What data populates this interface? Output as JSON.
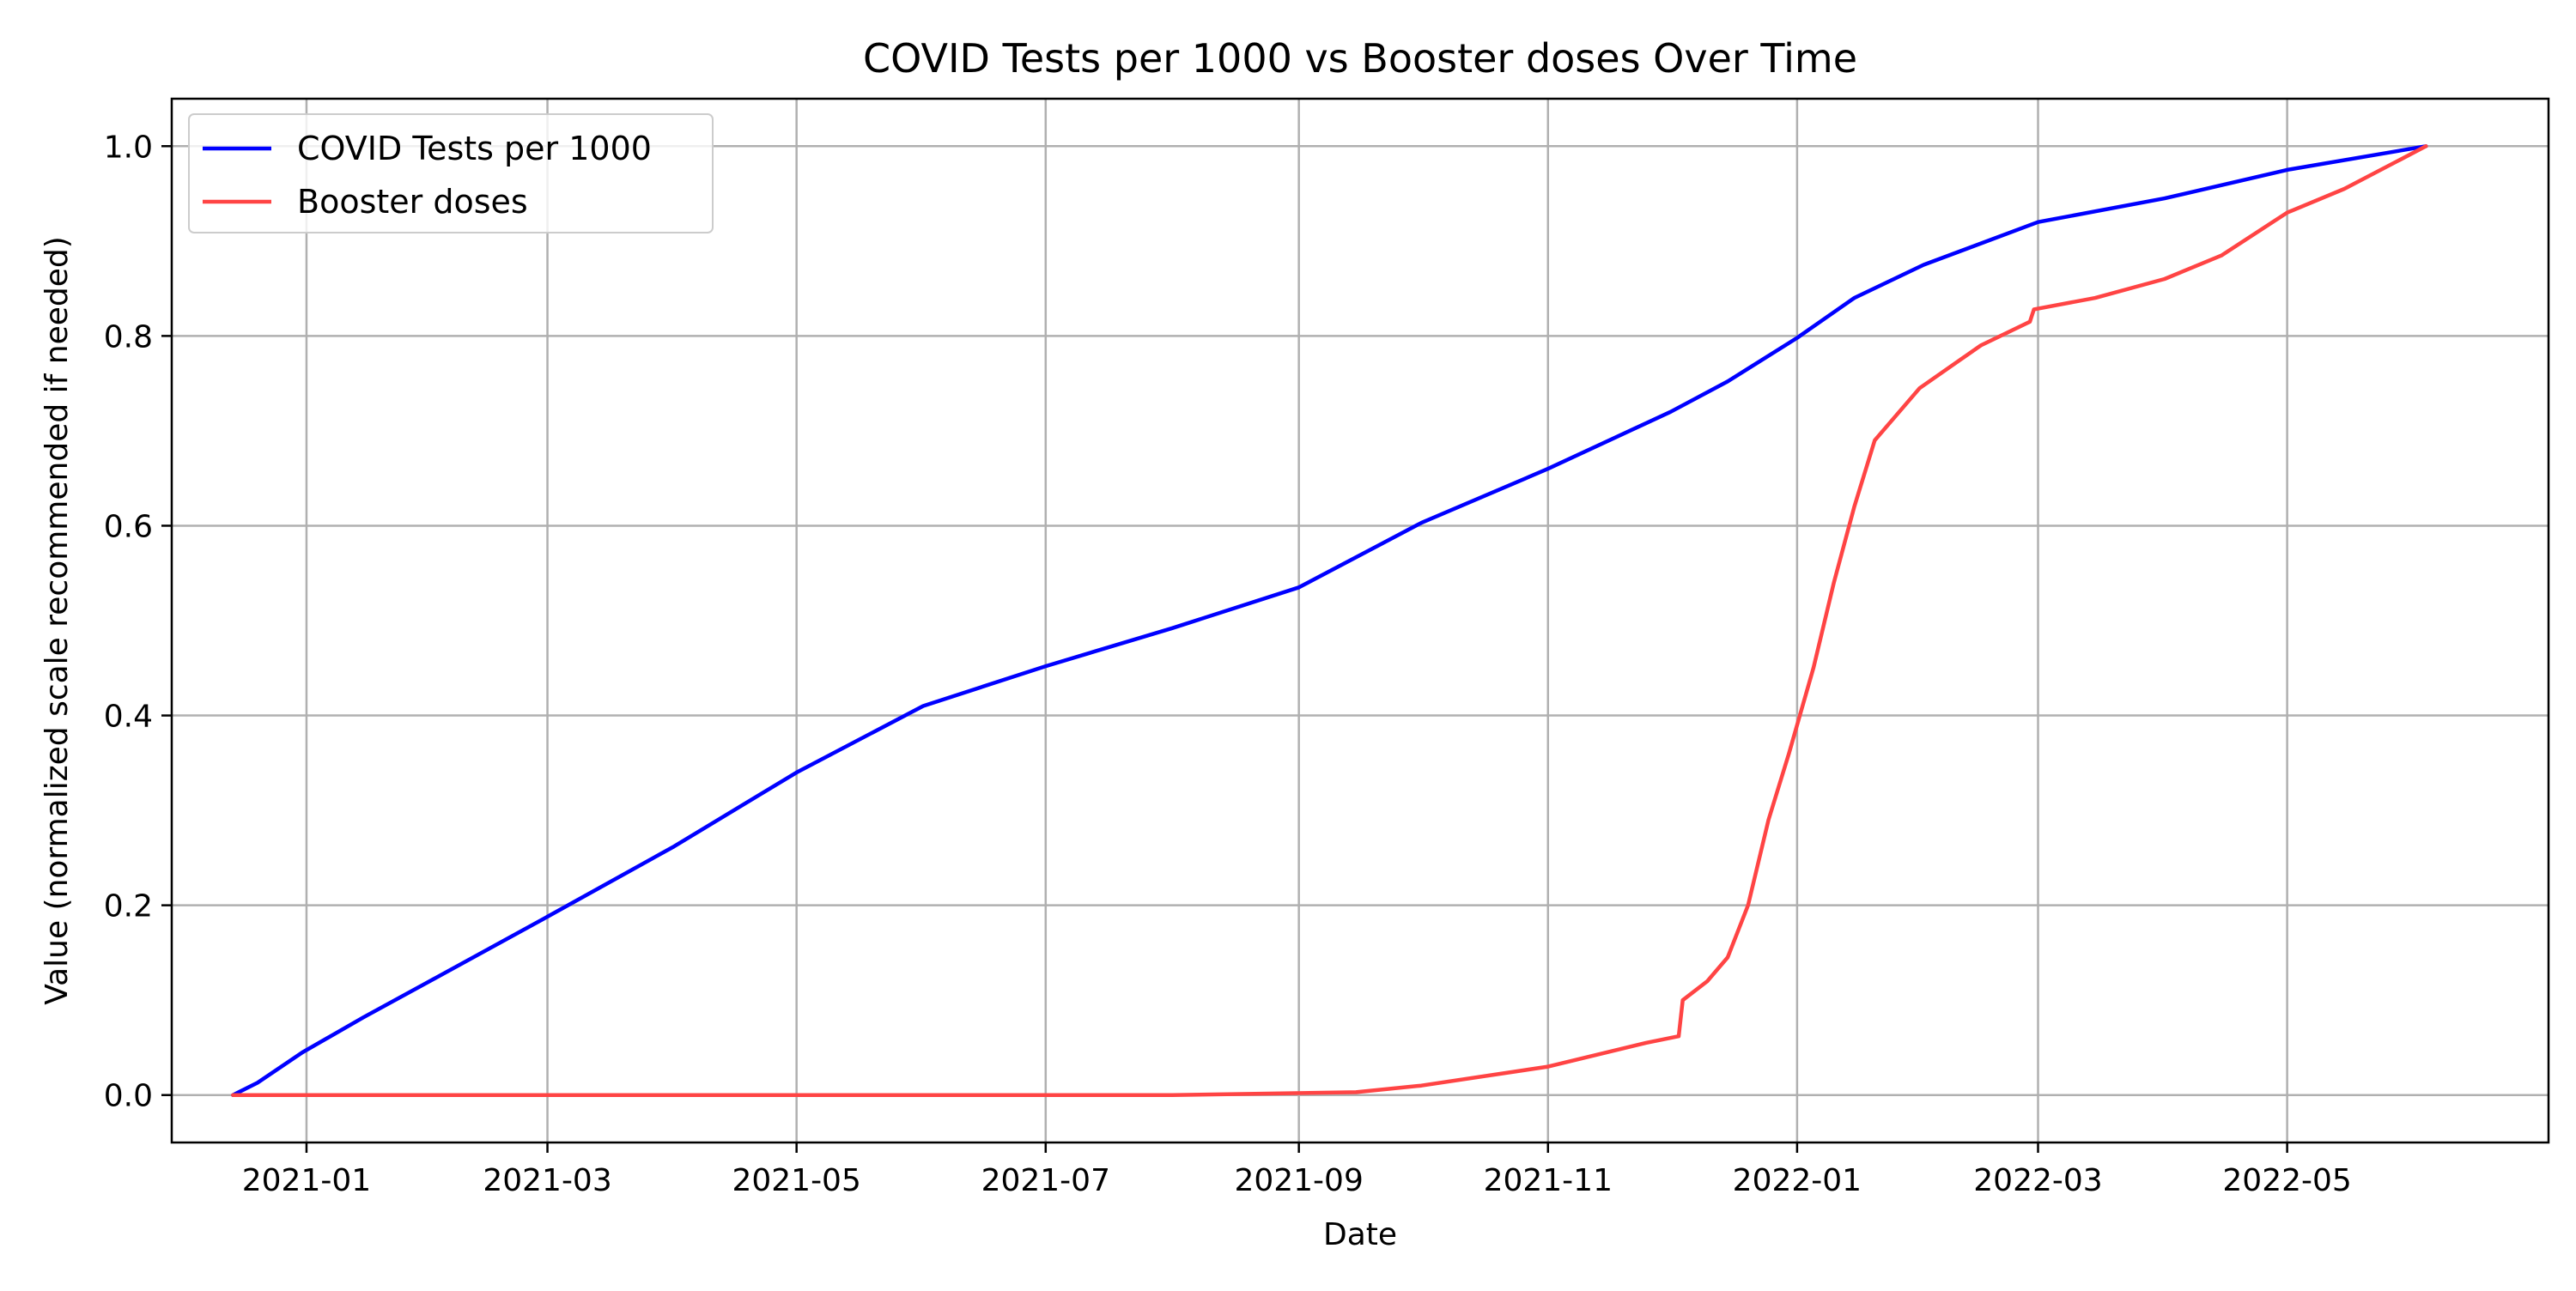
{
  "chart_data": {
    "type": "line",
    "title": "COVID Tests per 1000 vs Booster doses Over Time",
    "xlabel": "Date",
    "ylabel": "Value (normalized scale recommended if needed)",
    "xlim": [
      "2020-11-29",
      "2022-07-04"
    ],
    "ylim": [
      -0.05,
      1.05
    ],
    "x_ticks": [
      "2021-01",
      "2021-03",
      "2021-05",
      "2021-07",
      "2021-09",
      "2021-11",
      "2022-01",
      "2022-03",
      "2022-05"
    ],
    "y_ticks": [
      0.0,
      0.2,
      0.4,
      0.6,
      0.8,
      1.0
    ],
    "y_tick_labels": [
      "0.0",
      "0.2",
      "0.4",
      "0.6",
      "0.8",
      "1.0"
    ],
    "grid": true,
    "legend_position": "top-left",
    "series": [
      {
        "name": "COVID Tests per 1000",
        "color": "#0000ff",
        "points": [
          [
            "2020-12-14",
            0.0
          ],
          [
            "2020-12-20",
            0.013
          ],
          [
            "2020-12-31",
            0.045
          ],
          [
            "2021-01-15",
            0.082
          ],
          [
            "2021-02-01",
            0.122
          ],
          [
            "2021-03-01",
            0.188
          ],
          [
            "2021-04-01",
            0.262
          ],
          [
            "2021-05-01",
            0.34
          ],
          [
            "2021-06-01",
            0.41
          ],
          [
            "2021-07-01",
            0.452
          ],
          [
            "2021-08-01",
            0.492
          ],
          [
            "2021-09-01",
            0.535
          ],
          [
            "2021-10-01",
            0.603
          ],
          [
            "2021-11-01",
            0.66
          ],
          [
            "2021-12-01",
            0.72
          ],
          [
            "2021-12-15",
            0.752
          ],
          [
            "2022-01-01",
            0.798
          ],
          [
            "2022-01-05",
            0.81
          ],
          [
            "2022-01-15",
            0.84
          ],
          [
            "2022-02-01",
            0.875
          ],
          [
            "2022-03-01",
            0.92
          ],
          [
            "2022-04-01",
            0.945
          ],
          [
            "2022-05-01",
            0.975
          ],
          [
            "2022-06-04",
            1.0
          ]
        ]
      },
      {
        "name": "Booster doses",
        "color": "#ff4444",
        "points": [
          [
            "2020-12-14",
            0.0
          ],
          [
            "2021-08-01",
            0.0
          ],
          [
            "2021-09-15",
            0.003
          ],
          [
            "2021-10-01",
            0.01
          ],
          [
            "2021-11-01",
            0.03
          ],
          [
            "2021-11-25",
            0.055
          ],
          [
            "2021-12-03",
            0.062
          ],
          [
            "2021-12-04",
            0.1
          ],
          [
            "2021-12-10",
            0.12
          ],
          [
            "2021-12-15",
            0.145
          ],
          [
            "2021-12-20",
            0.2
          ],
          [
            "2021-12-25",
            0.29
          ],
          [
            "2021-12-30",
            0.36
          ],
          [
            "2022-01-05",
            0.45
          ],
          [
            "2022-01-10",
            0.54
          ],
          [
            "2022-01-15",
            0.62
          ],
          [
            "2022-01-20",
            0.69
          ],
          [
            "2022-01-31",
            0.745
          ],
          [
            "2022-02-15",
            0.79
          ],
          [
            "2022-02-27",
            0.815
          ],
          [
            "2022-02-28",
            0.828
          ],
          [
            "2022-03-15",
            0.84
          ],
          [
            "2022-04-01",
            0.86
          ],
          [
            "2022-04-15",
            0.885
          ],
          [
            "2022-05-01",
            0.93
          ],
          [
            "2022-05-15",
            0.955
          ],
          [
            "2022-06-04",
            1.0
          ]
        ]
      }
    ]
  }
}
